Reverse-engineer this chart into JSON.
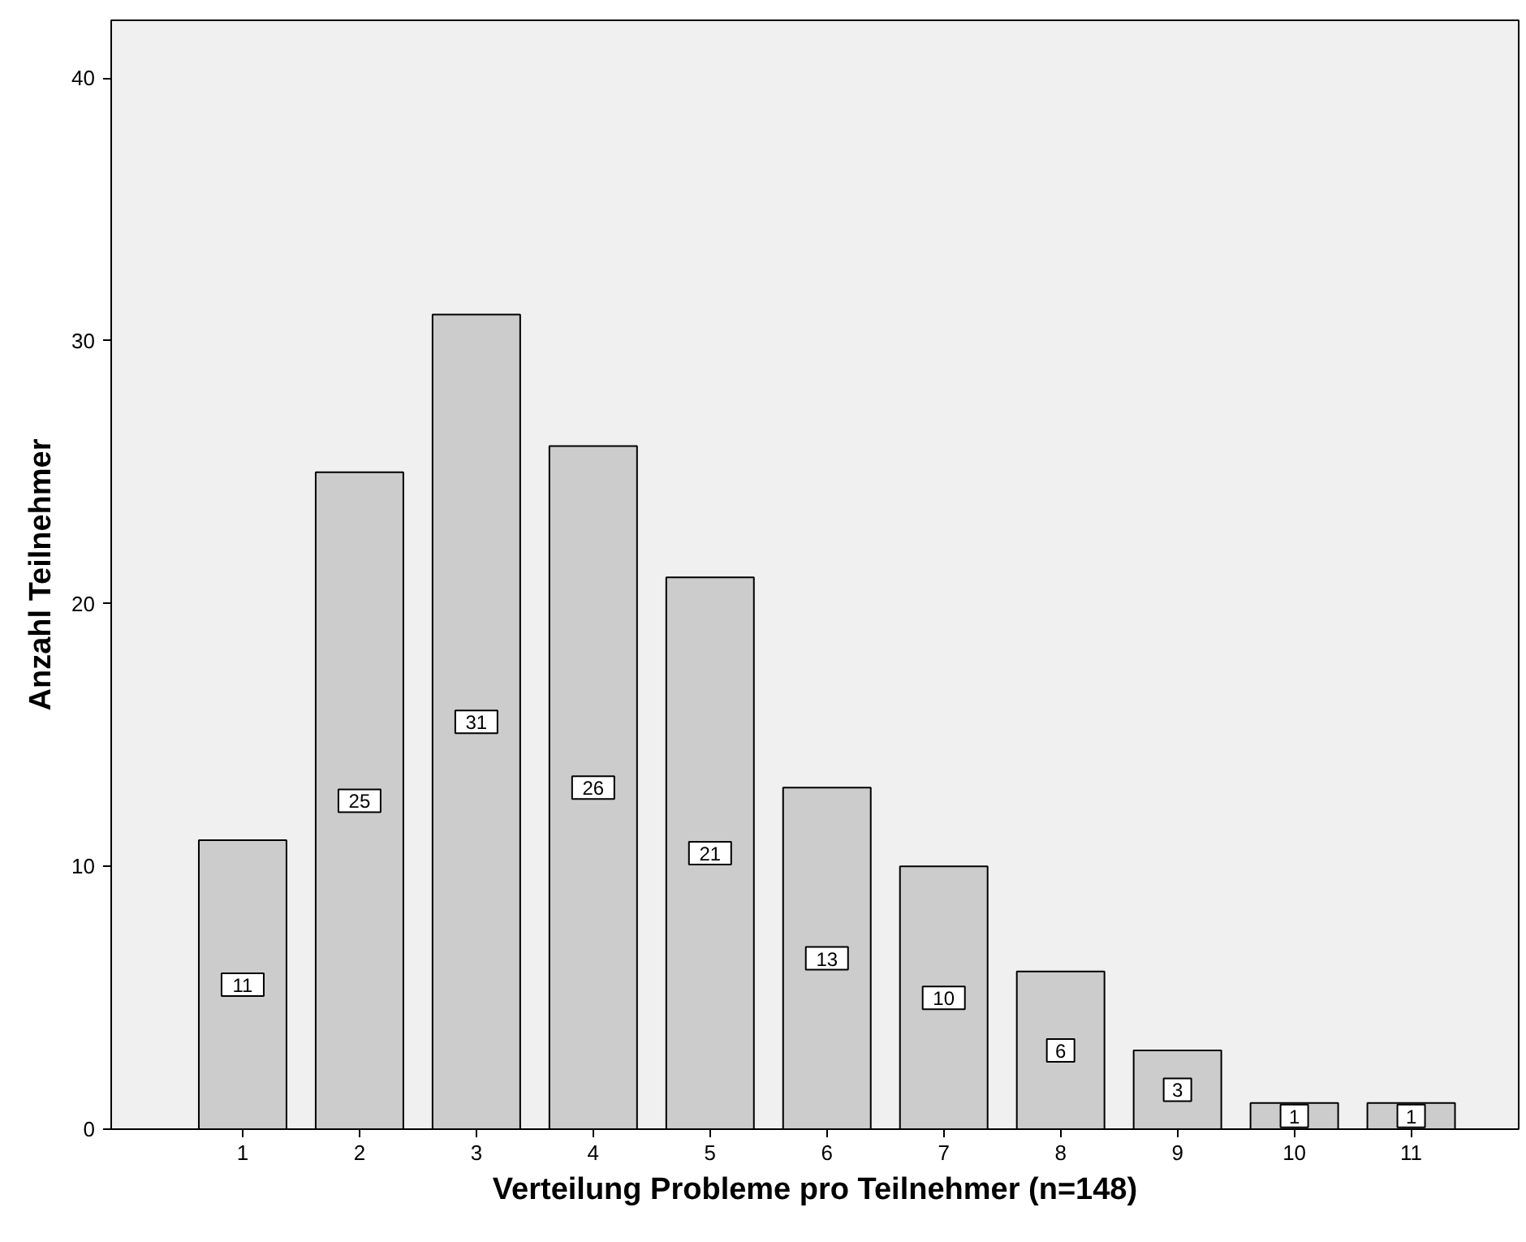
{
  "chart_data": {
    "type": "bar",
    "xlabel": "Verteilung Probleme pro Teilnehmer (n=148)",
    "ylabel": "Anzahl Teilnehmer",
    "categories": [
      "1",
      "2",
      "3",
      "4",
      "5",
      "6",
      "7",
      "8",
      "9",
      "10",
      "11"
    ],
    "values": [
      11,
      25,
      31,
      26,
      21,
      13,
      10,
      6,
      3,
      1,
      1
    ],
    "color": "#cccccc",
    "ylim": [
      0,
      42.2
    ],
    "yticks": [
      0,
      10,
      20,
      30,
      40
    ],
    "data_labels": true,
    "grid": false
  }
}
